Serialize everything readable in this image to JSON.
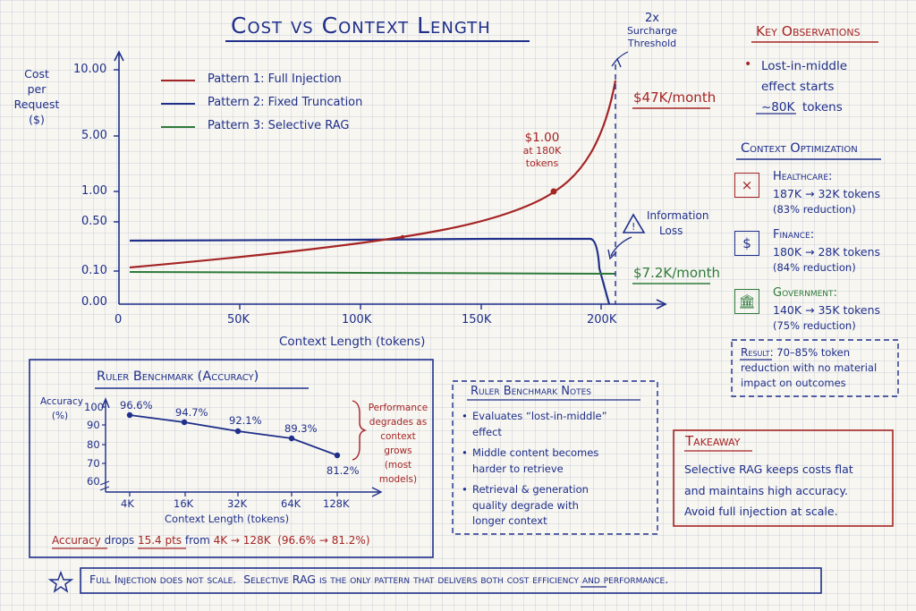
{
  "title": "Cost vs Context Length",
  "main_chart": {
    "y_label": [
      "Cost",
      "per",
      "Request",
      "($)"
    ],
    "y_ticks": [
      "10.00",
      "5.00",
      "1.00",
      "0.50",
      "0.10",
      "0.00"
    ],
    "x_ticks": [
      "0",
      "50K",
      "100K",
      "150K",
      "200K"
    ],
    "x_label": "Context Length (tokens)",
    "threshold_label": [
      "2x",
      "Surcharge",
      "Threshold"
    ],
    "peak_label": "$47K/month",
    "point_label": [
      "$1.00",
      "at 180K",
      "tokens"
    ],
    "info_loss_label": [
      "Information",
      "Loss"
    ],
    "flat_label": "$7.2K/month",
    "legend": [
      {
        "label": "Pattern 1:  Full Injection",
        "color": "#a52424"
      },
      {
        "label": "Pattern 2:  Fixed Truncation",
        "color": "#1f2f8a"
      },
      {
        "label": "Pattern 3:  Selective RAG",
        "color": "#2e7a3a"
      }
    ]
  },
  "chart_data": [
    {
      "type": "line",
      "title": "Cost vs Context Length",
      "xlabel": "Context Length (tokens)",
      "ylabel": "Cost per Request ($)",
      "x_ticks": [
        "0",
        "50K",
        "100K",
        "150K",
        "200K"
      ],
      "y_ticks": [
        "0.00",
        "0.10",
        "0.50",
        "1.00",
        "5.00",
        "10.00"
      ],
      "y_scale": "non-linear (compressed log)",
      "series": [
        {
          "name": "Pattern 1: Full Injection",
          "color": "#a52424",
          "x": [
            0,
            50000,
            100000,
            120000,
            150000,
            180000,
            190000,
            200000,
            205000
          ],
          "y": [
            0.12,
            0.18,
            0.26,
            0.3,
            0.5,
            1.0,
            1.8,
            4.5,
            9.0
          ]
        },
        {
          "name": "Pattern 2: Fixed Truncation",
          "color": "#1f2f8a",
          "x": [
            0,
            50000,
            100000,
            150000,
            195000,
            200000,
            203000
          ],
          "y": [
            0.3,
            0.3,
            0.31,
            0.31,
            0.31,
            0.1,
            0.0
          ]
        },
        {
          "name": "Pattern 3: Selective RAG",
          "color": "#2e7a3a",
          "x": [
            0,
            50000,
            100000,
            150000,
            205000
          ],
          "y": [
            0.1,
            0.1,
            0.1,
            0.1,
            0.1
          ]
        }
      ],
      "annotations": [
        "2x Surcharge Threshold",
        "$1.00 at 180K tokens",
        "$47K/month",
        "$7.2K/month",
        "Information Loss"
      ]
    },
    {
      "type": "line",
      "title": "Ruler Benchmark (Accuracy)",
      "xlabel": "Context Length (tokens)",
      "ylabel": "Accuracy (%)",
      "categories": [
        "4K",
        "16K",
        "32K",
        "64K",
        "128K"
      ],
      "values": [
        96.6,
        94.7,
        92.1,
        89.3,
        81.2
      ],
      "ylim": [
        60,
        100
      ],
      "y_ticks": [
        "60",
        "70",
        "80",
        "90",
        "100"
      ]
    }
  ],
  "observations": {
    "title": "Key Observations",
    "lines": [
      "Lost-in-middle",
      "effect starts"
    ],
    "highlight": "~80K",
    "tail": "tokens"
  },
  "optimization": {
    "title": "Context Optimization",
    "items": [
      {
        "name": "Healthcare:",
        "detail": "187K → 32K tokens",
        "pct": "(83% reduction)",
        "icon": "×"
      },
      {
        "name": "Finance:",
        "detail": "180K → 28K tokens",
        "pct": "(84% reduction)",
        "icon": "$"
      },
      {
        "name": "Government:",
        "detail": "140K → 35K tokens",
        "pct": "(75% reduction)",
        "icon": "🏛"
      }
    ],
    "result_label": "Result:",
    "result_text_1": "70–85% token",
    "result_text_2": "reduction with no material",
    "result_text_3": "impact on outcomes"
  },
  "ruler": {
    "title": "Ruler Benchmark (Accuracy)",
    "y_label": [
      "Accuracy",
      "(%)"
    ],
    "y_ticks": [
      "100",
      "90",
      "80",
      "70",
      "60"
    ],
    "x_ticks": [
      "4K",
      "16K",
      "32K",
      "64K",
      "128K"
    ],
    "x_label": "Context Length (tokens)",
    "point_labels": [
      "96.6%",
      "94.7%",
      "92.1%",
      "89.3%",
      "81.2%"
    ],
    "note": [
      "Performance",
      "degrades as",
      "context grows",
      "(most models)"
    ],
    "footer": {
      "a": "Accuracy",
      "b": " drops ",
      "c": "15.4 pts",
      "d": " from ",
      "e": "4K → 128K",
      "f": "  (96.6% → 81.2%)"
    }
  },
  "notes": {
    "title": "Ruler Benchmark Notes",
    "items": [
      [
        "Evaluates “lost-in-middle”",
        "effect"
      ],
      [
        "Middle content becomes",
        "harder to retrieve"
      ],
      [
        "Retrieval & generation",
        "quality degrade with",
        "longer context"
      ]
    ]
  },
  "takeaway": {
    "title": "Takeaway",
    "lines": [
      "Selective RAG keeps costs flat",
      "and maintains high accuracy.",
      "Avoid full injection at scale."
    ]
  },
  "banner": {
    "pre": "Full Injection does not scale.  Selective RAG is the only pattern that delivers ",
    "both": "both",
    "post": " cost efficiency and performance."
  }
}
